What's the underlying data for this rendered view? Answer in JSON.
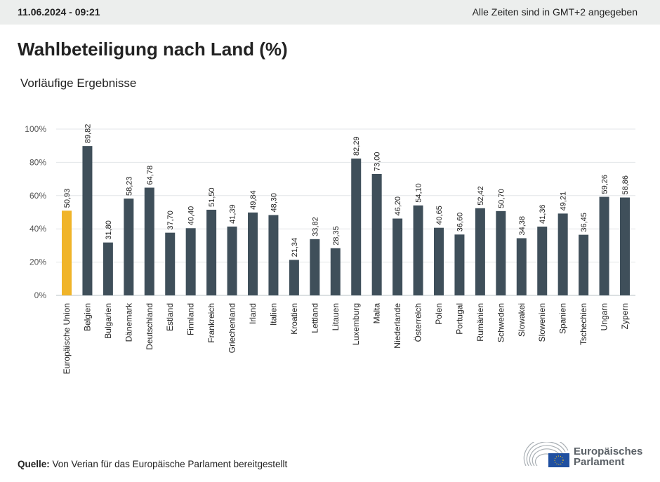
{
  "header": {
    "date": "11.06.2024 - 09:21",
    "timezone_note": "Alle Zeiten sind in GMT+2 angegeben"
  },
  "title": "Wahlbeteiligung nach Land (%)",
  "subtitle": "Vorläufige Ergebnisse",
  "source": {
    "label": "Quelle:",
    "text": " Von Verian für das Europäische Parlament bereitgestellt"
  },
  "logo": {
    "line1": "Europäisches",
    "line2": "Parlament"
  },
  "colors": {
    "highlight": "#f0b429",
    "bar": "#3f4f5a",
    "grid": "#e3e6e8"
  },
  "chart_data": {
    "type": "bar",
    "title": "Wahlbeteiligung nach Land (%)",
    "xlabel": "",
    "ylabel": "",
    "ylim": [
      0,
      100
    ],
    "yticks": [
      "0%",
      "20%",
      "40%",
      "60%",
      "80%",
      "100%"
    ],
    "grid": true,
    "categories": [
      "Europäische Union",
      "Belgien",
      "Bulgarien",
      "Dänemark",
      "Deutschland",
      "Estland",
      "Finnland",
      "Frankreich",
      "Griechenland",
      "Irland",
      "Italien",
      "Kroatien",
      "Lettland",
      "Litauen",
      "Luxemburg",
      "Malta",
      "Niederlande",
      "Österreich",
      "Polen",
      "Portugal",
      "Rumänien",
      "Schweden",
      "Slowakei",
      "Slowenien",
      "Spanien",
      "Tschechien",
      "Ungarn",
      "Zypern"
    ],
    "values": [
      50.93,
      89.82,
      31.8,
      58.23,
      64.78,
      37.7,
      40.4,
      51.5,
      41.39,
      49.84,
      48.3,
      21.34,
      33.82,
      28.35,
      82.29,
      73.0,
      46.2,
      54.1,
      40.65,
      36.6,
      52.42,
      50.7,
      34.38,
      41.36,
      49.21,
      36.45,
      59.26,
      58.86
    ],
    "labels": [
      "50,93",
      "89,82",
      "31,80",
      "58,23",
      "64,78",
      "37,70",
      "40,40",
      "51,50",
      "41,39",
      "49,84",
      "48,30",
      "21,34",
      "33,82",
      "28,35",
      "82,29",
      "73,00",
      "46,20",
      "54,10",
      "40,65",
      "36,60",
      "52,42",
      "50,70",
      "34,38",
      "41,36",
      "49,21",
      "36,45",
      "59,26",
      "58,86"
    ],
    "highlight_index": 0
  }
}
